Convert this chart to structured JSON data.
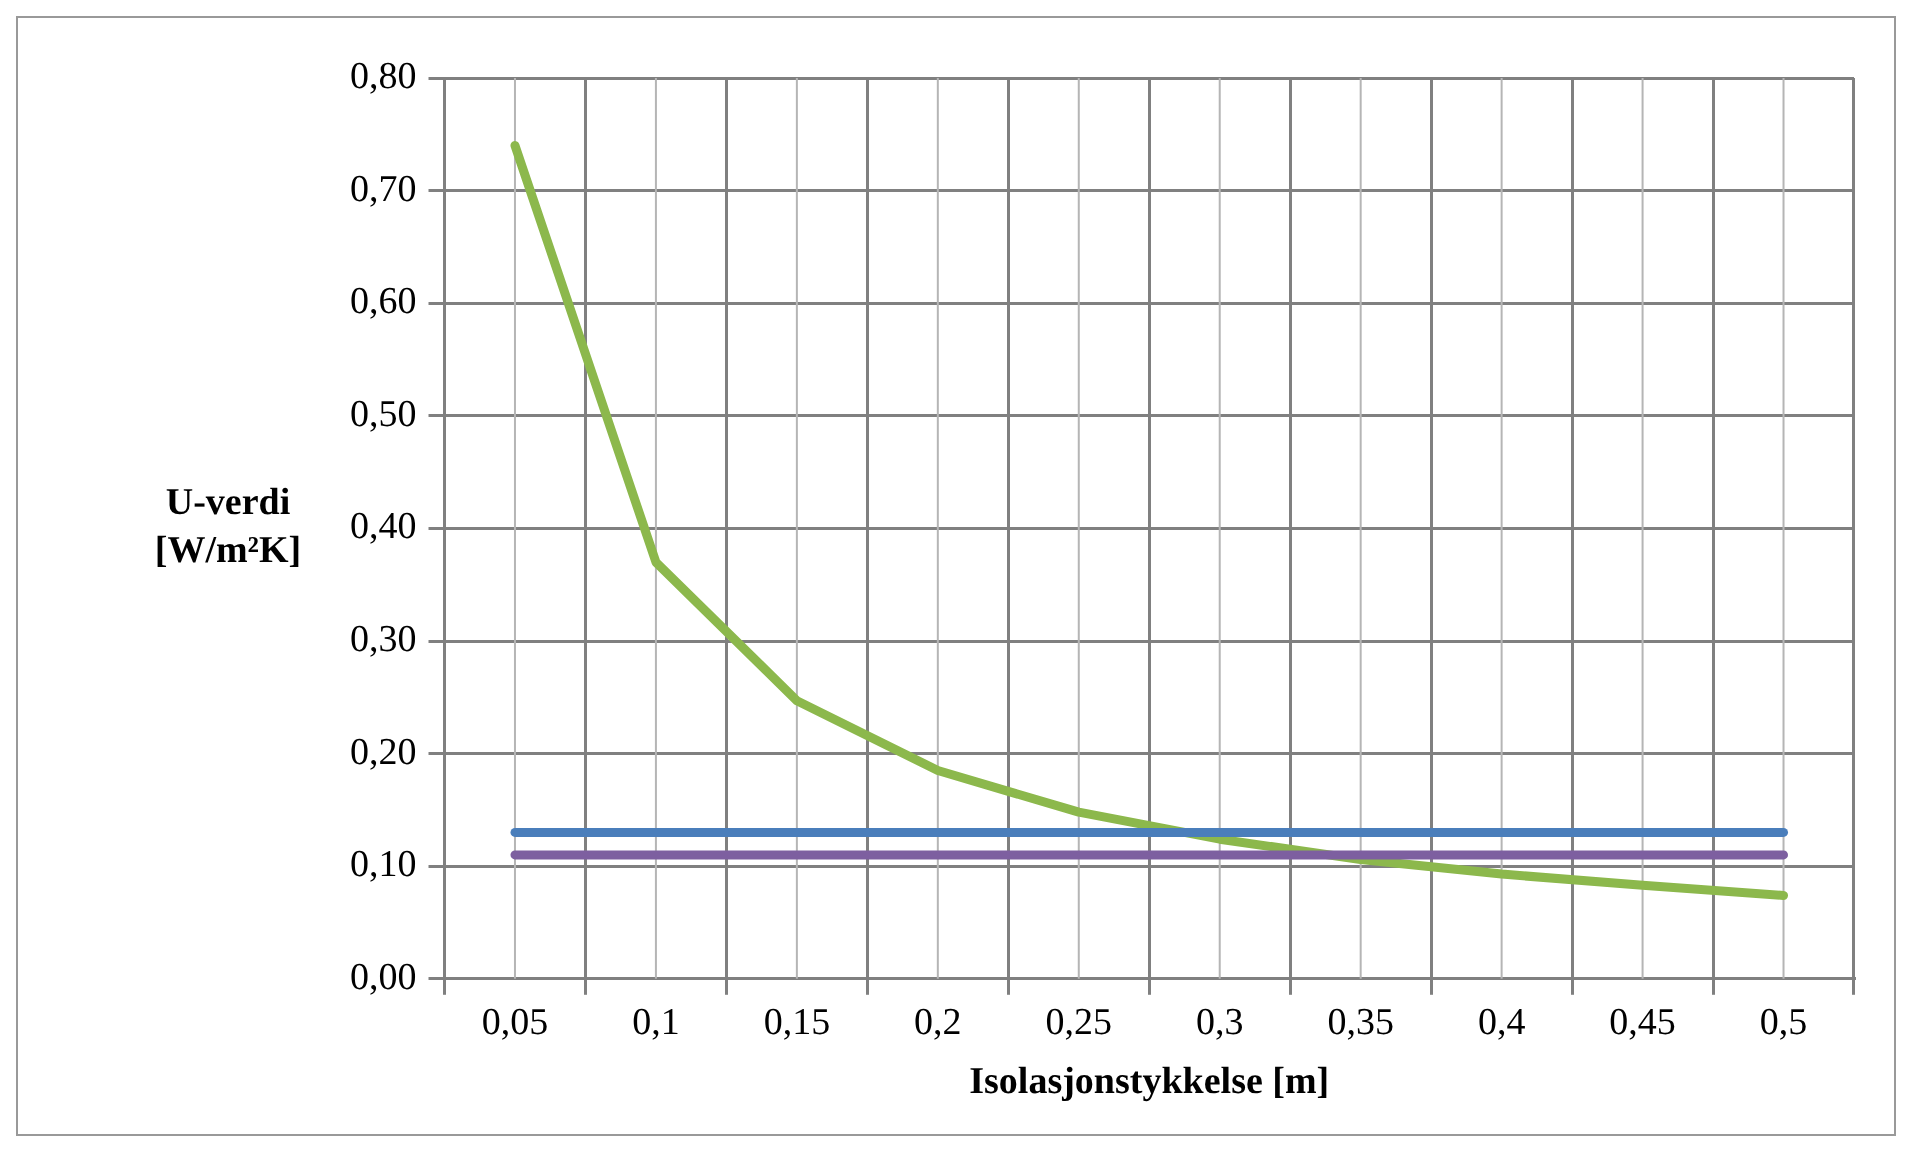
{
  "chart_data": {
    "type": "line",
    "xlabel": "Isolasjonstykkelse [m]",
    "ylabel": "U-verdi [W/m²K]",
    "categories": [
      "0,05",
      "0,1",
      "0,15",
      "0,2",
      "0,25",
      "0,3",
      "0,35",
      "0,4",
      "0,45",
      "0,5"
    ],
    "series": [
      {
        "color": "#4a7ebb",
        "values": [
          0.13,
          0.13,
          0.13,
          0.13,
          0.13,
          0.13,
          0.13,
          0.13,
          0.13,
          0.13
        ]
      },
      {
        "color": "#7d5fa0",
        "values": [
          0.11,
          0.11,
          0.11,
          0.11,
          0.11,
          0.11,
          0.11,
          0.11,
          0.11,
          0.11
        ]
      },
      {
        "color": "#8cb84c",
        "values": [
          0.74,
          0.37,
          0.247,
          0.185,
          0.148,
          0.124,
          0.106,
          0.093,
          0.083,
          0.074
        ]
      }
    ],
    "ylim": [
      0,
      0.8
    ],
    "yticks": [
      {
        "value": 0,
        "label": "0,00"
      },
      {
        "value": 0.1,
        "label": "0,10"
      },
      {
        "value": 0.2,
        "label": "0,20"
      },
      {
        "value": 0.3,
        "label": "0,30"
      },
      {
        "value": 0.4,
        "label": "0,40"
      },
      {
        "value": 0.5,
        "label": "0,50"
      },
      {
        "value": 0.6,
        "label": "0,60"
      },
      {
        "value": 0.7,
        "label": "0,70"
      },
      {
        "value": 0.8,
        "label": "0,80"
      }
    ],
    "grid": true,
    "legend": false,
    "marker": "none",
    "line_style": "solid"
  }
}
